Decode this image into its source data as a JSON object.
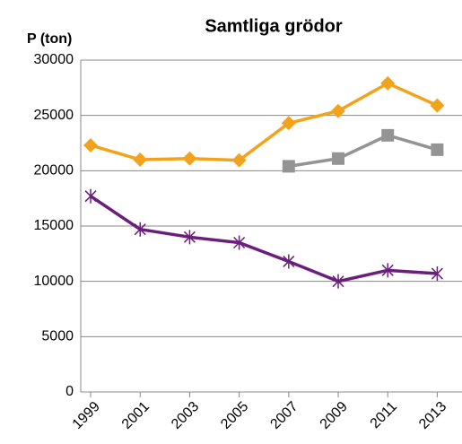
{
  "chart_data": {
    "type": "line",
    "title": "Samtliga grödor",
    "y_label": "P (ton)",
    "x": [
      1999,
      2001,
      2003,
      2005,
      2007,
      2009,
      2011,
      2013
    ],
    "xlim": [
      1998.6,
      2014
    ],
    "xticks": [
      1999,
      2001,
      2003,
      2005,
      2007,
      2009,
      2011,
      2013
    ],
    "ylim": [
      0,
      30000
    ],
    "yticks": [
      0,
      5000,
      10000,
      15000,
      20000,
      25000,
      30000
    ],
    "grid": true,
    "series": [
      {
        "color": "#f2a31b",
        "marker": "diamond",
        "values": [
          22300,
          21000,
          21100,
          20950,
          24300,
          25400,
          27900,
          25900
        ]
      },
      {
        "color": "#949494",
        "marker": "square",
        "values": [
          null,
          null,
          null,
          null,
          20400,
          21100,
          23200,
          21900
        ]
      },
      {
        "color": "#6b1f7c",
        "marker": "asterisk",
        "values": [
          17700,
          14700,
          14000,
          13500,
          11800,
          10000,
          11000,
          10700
        ]
      }
    ]
  }
}
